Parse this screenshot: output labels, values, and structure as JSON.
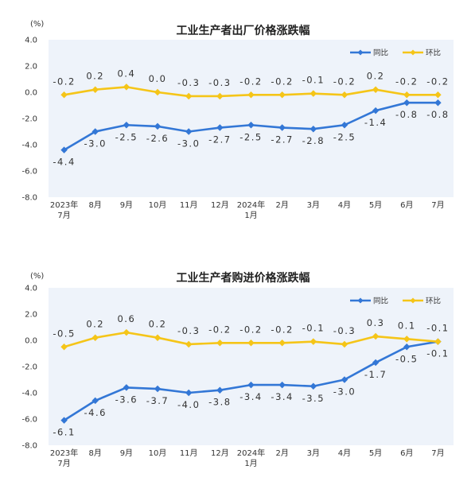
{
  "chart_data": [
    {
      "type": "line",
      "title": "工业生产者出厂价格涨跌幅",
      "unit_label": "(%)",
      "categories": [
        "2023年\n7月",
        "8月",
        "9月",
        "10月",
        "11月",
        "12月",
        "2024年\n1月",
        "2月",
        "3月",
        "4月",
        "5月",
        "6月",
        "7月"
      ],
      "ylim": [
        -8.0,
        4.0
      ],
      "yticks": [
        "-8.0",
        "-6.0",
        "-4.0",
        "-2.0",
        "0.0",
        "2.0",
        "4.0"
      ],
      "legend_position": "top-right",
      "series": [
        {
          "name": "同比",
          "color": "#3377d6",
          "values": [
            -4.4,
            -3.0,
            -2.5,
            -2.6,
            -3.0,
            -2.7,
            -2.5,
            -2.7,
            -2.8,
            -2.5,
            -1.4,
            -0.8,
            -0.8
          ],
          "labels": [
            "-4.4",
            "-3.0",
            "-2.5",
            "-2.6",
            "-3.0",
            "-2.7",
            "-2.5",
            "-2.7",
            "-2.8",
            "-2.5",
            "-1.4",
            "-0.8",
            "-0.8"
          ]
        },
        {
          "name": "环比",
          "color": "#f5c518",
          "values": [
            -0.2,
            0.2,
            0.4,
            0.0,
            -0.3,
            -0.3,
            -0.2,
            -0.2,
            -0.1,
            -0.2,
            0.2,
            -0.2,
            -0.2
          ],
          "labels": [
            "-0.2",
            "0.2",
            "0.4",
            "0.0",
            "-0.3",
            "-0.3",
            "-0.2",
            "-0.2",
            "-0.1",
            "-0.2",
            "0.2",
            "-0.2",
            "-0.2"
          ]
        }
      ]
    },
    {
      "type": "line",
      "title": "工业生产者购进价格涨跌幅",
      "unit_label": "(%)",
      "categories": [
        "2023年\n7月",
        "8月",
        "9月",
        "10月",
        "11月",
        "12月",
        "2024年\n1月",
        "2月",
        "3月",
        "4月",
        "5月",
        "6月",
        "7月"
      ],
      "ylim": [
        -8.0,
        4.0
      ],
      "yticks": [
        "-8.0",
        "-6.0",
        "-4.0",
        "-2.0",
        "0.0",
        "2.0",
        "4.0"
      ],
      "legend_position": "top-right",
      "series": [
        {
          "name": "同比",
          "color": "#3377d6",
          "values": [
            -6.1,
            -4.6,
            -3.6,
            -3.7,
            -4.0,
            -3.8,
            -3.4,
            -3.4,
            -3.5,
            -3.0,
            -1.7,
            -0.5,
            -0.1
          ],
          "labels": [
            "-6.1",
            "-4.6",
            "-3.6",
            "-3.7",
            "-4.0",
            "-3.8",
            "-3.4",
            "-3.4",
            "-3.5",
            "-3.0",
            "-1.7",
            "-0.5",
            "-0.1"
          ]
        },
        {
          "name": "环比",
          "color": "#f5c518",
          "values": [
            -0.5,
            0.2,
            0.6,
            0.2,
            -0.3,
            -0.2,
            -0.2,
            -0.2,
            -0.1,
            -0.3,
            0.3,
            0.1,
            -0.1
          ],
          "labels": [
            "-0.5",
            "0.2",
            "0.6",
            "0.2",
            "-0.3",
            "-0.2",
            "-0.2",
            "-0.2",
            "-0.1",
            "-0.3",
            "0.3",
            "0.1",
            "-0.1"
          ]
        }
      ]
    }
  ]
}
